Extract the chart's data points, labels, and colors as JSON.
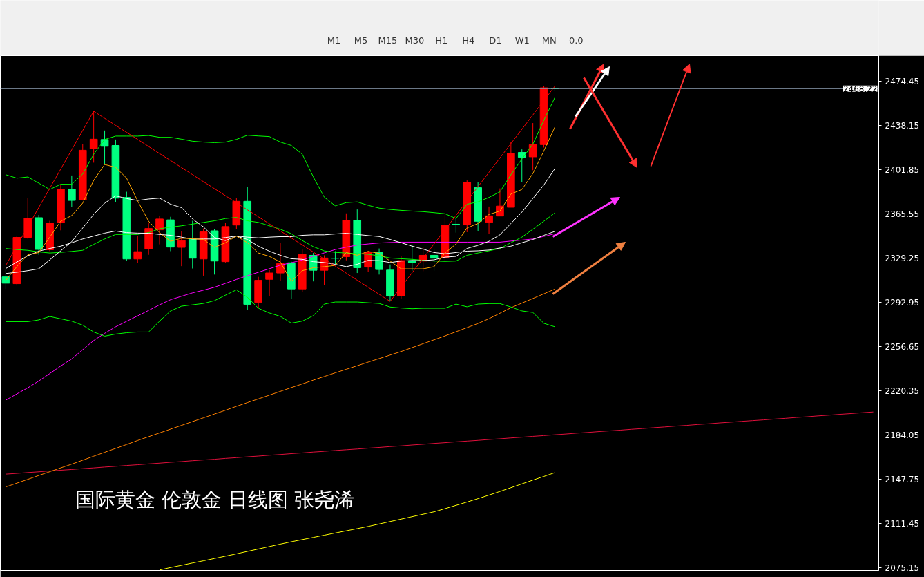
{
  "chart_data": {
    "type": "candlestick",
    "title": "国际黄金 伦敦金 日线图 张尧浠",
    "annotations": [
      "M1",
      "M5",
      "M15",
      "M30",
      "H1",
      "H4",
      "D1",
      "W1",
      "MN",
      "0.0"
    ],
    "tick_labels": "y",
    "ylim": [
      2073.0,
      2495.3
    ],
    "yticks": [
      2474.45,
      2438.15,
      2401.85,
      2365.55,
      2329.25,
      2292.95,
      2256.65,
      2220.35,
      2184.05,
      2147.75,
      2111.45,
      2075.15
    ],
    "ref_lines": [
      {
        "axis": "y",
        "value": 2468.22,
        "label": "2468.22",
        "color": "#8c9cb0"
      }
    ],
    "categories": [
      null,
      null,
      null,
      null,
      null,
      null,
      null,
      null,
      null,
      null,
      null,
      null,
      null,
      null,
      null,
      null,
      null,
      null,
      null,
      null,
      null,
      null,
      null,
      null,
      null,
      null,
      null,
      null,
      null,
      null,
      null,
      null,
      null,
      null,
      null,
      null,
      null,
      null,
      null,
      null,
      null,
      null,
      null,
      null,
      null,
      null,
      null,
      null,
      null,
      null,
      null,
      null,
      null,
      null,
      null,
      null,
      null,
      null,
      null,
      null,
      null,
      null,
      null,
      null,
      null,
      null,
      null,
      null,
      null,
      null,
      null,
      null,
      null,
      null,
      null,
      null,
      null,
      null,
      null,
      null
    ],
    "ohlc": [
      [
        2313.8,
        2320.4,
        2303.9,
        2308.6
      ],
      [
        2308.2,
        2347.3,
        2306.7,
        2346.2
      ],
      [
        2346.2,
        2378.6,
        2345.1,
        2361.9
      ],
      [
        2362.4,
        2364.6,
        2331.9,
        2336.3
      ],
      [
        2336.0,
        2359.8,
        2334.9,
        2358.0
      ],
      [
        2358.1,
        2389.2,
        2352.0,
        2385.9
      ],
      [
        2385.9,
        2397.0,
        2371.0,
        2376.5
      ],
      [
        2377.1,
        2422.7,
        2376.5,
        2417.7
      ],
      [
        2419.0,
        2449.7,
        2407.5,
        2426.8
      ],
      [
        2426.5,
        2433.9,
        2406.0,
        2420.9
      ],
      [
        2421.6,
        2426.5,
        2375.1,
        2378.4
      ],
      [
        2379.0,
        2383.6,
        2326.8,
        2328.5
      ],
      [
        2328.5,
        2347.3,
        2325.0,
        2334.5
      ],
      [
        2336.9,
        2358.5,
        2331.9,
        2353.5
      ],
      [
        2352.4,
        2364.1,
        2340.5,
        2361.3
      ],
      [
        2360.6,
        2363.1,
        2334.9,
        2338.2
      ],
      [
        2338.0,
        2351.6,
        2322.6,
        2343.6
      ],
      [
        2344.9,
        2359.8,
        2320.7,
        2329.1
      ],
      [
        2328.5,
        2353.5,
        2314.8,
        2350.7
      ],
      [
        2351.6,
        2352.9,
        2315.7,
        2326.8
      ],
      [
        2326.3,
        2357.9,
        2325.6,
        2355.1
      ],
      [
        2356.3,
        2378.4,
        2352.9,
        2375.8
      ],
      [
        2375.8,
        2387.4,
        2286.8,
        2291.3
      ],
      [
        2292.8,
        2313.8,
        2288.3,
        2311.0
      ],
      [
        2311.8,
        2319.4,
        2298.0,
        2317.0
      ],
      [
        2317.0,
        2341.7,
        2310.6,
        2324.8
      ],
      [
        2325.4,
        2326.3,
        2295.8,
        2303.9
      ],
      [
        2303.9,
        2336.7,
        2301.4,
        2332.3
      ],
      [
        2331.5,
        2333.4,
        2310.1,
        2319.2
      ],
      [
        2319.2,
        2331.5,
        2306.9,
        2329.3
      ],
      [
        2329.1,
        2334.9,
        2324.0,
        2329.1
      ],
      [
        2330.4,
        2365.9,
        2327.4,
        2360.2
      ],
      [
        2360.2,
        2369.1,
        2317.0,
        2321.3
      ],
      [
        2321.8,
        2335.2,
        2317.6,
        2334.3
      ],
      [
        2334.3,
        2337.1,
        2315.7,
        2319.8
      ],
      [
        2319.4,
        2324.0,
        2293.7,
        2298.0
      ],
      [
        2298.3,
        2331.1,
        2296.1,
        2327.2
      ],
      [
        2327.2,
        2339.9,
        2318.9,
        2325.4
      ],
      [
        2326.8,
        2338.6,
        2318.5,
        2331.5
      ],
      [
        2331.5,
        2337.1,
        2318.9,
        2329.1
      ],
      [
        2329.6,
        2365.0,
        2326.8,
        2356.1
      ],
      [
        2357.0,
        2361.7,
        2350.1,
        2357.0
      ],
      [
        2356.4,
        2392.9,
        2350.5,
        2391.4
      ],
      [
        2387.0,
        2391.4,
        2351.1,
        2359.4
      ],
      [
        2358.5,
        2371.5,
        2349.2,
        2363.9
      ],
      [
        2363.7,
        2386.4,
        2363.7,
        2371.9
      ],
      [
        2370.9,
        2424.6,
        2370.9,
        2415.3
      ],
      [
        2415.9,
        2418.4,
        2391.6,
        2411.9
      ],
      [
        2412.3,
        2440.0,
        2401.3,
        2422.2
      ],
      [
        2422.3,
        2470.2,
        2419.9,
        2468.9
      ],
      [
        2468.22,
        2470.2,
        2466.4,
        2468.22
      ],
      null,
      null,
      null,
      null,
      null,
      null,
      null,
      null,
      null,
      null,
      null,
      null,
      null,
      null,
      null,
      null,
      null,
      null,
      null,
      null,
      null,
      null,
      null,
      null,
      null,
      null,
      null,
      null,
      null
    ],
    "colors": [
      "#00ff80",
      "#ff0000",
      "#ff0000",
      "#00ff80",
      "#ff0000",
      "#ff0000",
      "#00ff80",
      "#ff0000",
      "#ff0000",
      "#00ff80",
      "#00ff80",
      "#00ff80",
      "#ff0000",
      "#ff0000",
      "#ff0000",
      "#00ff80",
      "#ff0000",
      "#00ff80",
      "#ff0000",
      "#00ff80",
      "#ff0000",
      "#ff0000",
      "#00ff80",
      "#ff0000",
      "#ff0000",
      "#ff0000",
      "#00ff80",
      "#ff0000",
      "#00ff80",
      "#ff0000",
      "#00ff80",
      "#ff0000",
      "#00ff80",
      "#ff0000",
      "#00ff80",
      "#00ff80",
      "#ff0000",
      "#00ff80",
      "#ff0000",
      "#00ff80",
      "#ff0000",
      "#00ff80",
      "#ff0000",
      "#00ff80",
      "#ff0000",
      "#ff0000",
      "#ff0000",
      "#00ff80",
      "#ff0000",
      "#ff0000",
      "#00ff80",
      null,
      null,
      null,
      null,
      null,
      null,
      null,
      null,
      null,
      null,
      null,
      null,
      null,
      null,
      null,
      null,
      null,
      null,
      null,
      null,
      null,
      null,
      null,
      null,
      null,
      null,
      null,
      null,
      null
    ],
    "series": [
      {
        "type": "line",
        "color": "#e0103c",
        "values": [
          2152.0,
          2152.6,
          2153.3,
          2153.9,
          2154.6,
          2155.2,
          2155.8,
          2156.5,
          2157.1,
          2157.8,
          2158.4,
          2159.1,
          2159.7,
          2160.4,
          2161.0,
          2161.7,
          2162.3,
          2163.0,
          2163.6,
          2164.2,
          2164.9,
          2165.5,
          2166.2,
          2166.8,
          2167.5,
          2168.1,
          2168.8,
          2169.4,
          2170.1,
          2170.7,
          2171.4,
          2172.0,
          2172.6,
          2173.3,
          2173.9,
          2174.6,
          2175.2,
          2175.9,
          2176.5,
          2177.2,
          2177.8,
          2178.5,
          2179.1,
          2179.7,
          2180.4,
          2181.0,
          2181.7,
          2182.3,
          2183.0,
          2183.6,
          2184.3,
          2184.9,
          2185.6,
          2186.2,
          2186.9,
          2187.5,
          2188.1,
          2188.8,
          2189.4,
          2190.1,
          2190.7,
          2191.4,
          2192.0,
          2192.7,
          2193.3,
          2194.0,
          2194.6,
          2195.3,
          2195.9,
          2196.5,
          2197.2,
          2197.8,
          2198.5,
          2199.1,
          2199.8,
          2200.4,
          2201.1,
          2201.7,
          2202.4,
          2203.0
        ]
      },
      {
        "type": "line",
        "color": "#ffff00",
        "values": [
          null,
          null,
          null,
          null,
          null,
          null,
          null,
          null,
          null,
          null,
          null,
          null,
          null,
          null,
          2073.4,
          2075.4,
          2077.2,
          2079.1,
          2080.9,
          2082.8,
          2084.7,
          2086.6,
          2088.6,
          2090.6,
          2092.6,
          2094.6,
          2096.5,
          2098.3,
          2100.1,
          2101.9,
          2103.7,
          2105.5,
          2107.3,
          2109.1,
          2111.1,
          2113.1,
          2115.1,
          2117.1,
          2119.1,
          2121.1,
          2123.7,
          2126.4,
          2129.1,
          2131.9,
          2134.8,
          2137.8,
          2140.9,
          2144.0,
          2147.1,
          2150.1,
          2153.2,
          null,
          null,
          null,
          null,
          null,
          null,
          null,
          null,
          null,
          null,
          null,
          null,
          null,
          null,
          null,
          null,
          null,
          null,
          null,
          null,
          null,
          null,
          null,
          null,
          null,
          null,
          null,
          null,
          null
        ]
      },
      {
        "type": "line",
        "color": "#ff8000",
        "values": [
          2141.5,
          2144.6,
          2147.7,
          2150.9,
          2154.0,
          2157.1,
          2160.2,
          2163.4,
          2166.7,
          2169.9,
          2173.1,
          2176.3,
          2179.6,
          2182.7,
          2185.8,
          2188.9,
          2192.0,
          2195.1,
          2198.2,
          2201.3,
          2204.4,
          2207.6,
          2210.7,
          2213.7,
          2216.8,
          2219.9,
          2223.0,
          2226.0,
          2229.1,
          2232.1,
          2235.1,
          2238.0,
          2240.9,
          2243.9,
          2246.8,
          2249.7,
          2252.6,
          2255.8,
          2259.0,
          2262.2,
          2265.4,
          2268.8,
          2272.2,
          2275.6,
          2279.5,
          2284.0,
          2288.5,
          2292.3,
          2296.1,
          2299.9,
          2303.8,
          null,
          null,
          null,
          null,
          null,
          null,
          null,
          null,
          null,
          null,
          null,
          null,
          null,
          null,
          null,
          null,
          null,
          null,
          null,
          null,
          null,
          null,
          null,
          null,
          null,
          null,
          null,
          null,
          null
        ]
      },
      {
        "type": "line",
        "color": "#ff00ff",
        "values": [
          2212.7,
          2217.8,
          2222.8,
          2228.4,
          2234.5,
          2240.7,
          2246.5,
          2254.1,
          2261.6,
          2267.5,
          2272.9,
          2277.4,
          2281.8,
          2286.3,
          2290.9,
          2295.1,
          2297.9,
          2300.7,
          2302.9,
          2305.3,
          2308.5,
          2311.7,
          2314.8,
          2317.6,
          2320.5,
          2323.4,
          2325.4,
          2327.7,
          2330.7,
          2333.5,
          2336.2,
          2338.2,
          2339.9,
          2340.8,
          2341.6,
          2342.0,
          2342.3,
          2342.3,
          2342.3,
          2342.3,
          2342.3,
          2342.3,
          2342.3,
          2342.3,
          2342.3,
          2342.3,
          2343.2,
          2344.0,
          2344.9,
          2347.0,
          2349.2,
          null,
          null,
          null,
          null,
          null,
          null,
          null,
          null,
          null,
          null,
          null,
          null,
          null,
          null,
          null,
          null,
          null,
          null,
          null,
          null,
          null,
          null,
          null,
          null,
          null,
          null,
          null,
          null,
          null
        ]
      },
      {
        "type": "line",
        "color": "#00ff00",
        "values": [
          2397.6,
          2394.8,
          2395.8,
          2390.7,
          2385.5,
          2389.8,
          2389.8,
          2398.2,
          2414.4,
          2426.5,
          2429.3,
          2429.3,
          2429.3,
          2429.8,
          2428.3,
          2428.3,
          2426.8,
          2425.1,
          2424.4,
          2423.9,
          2424.4,
          2426.6,
          2430.0,
          2429.4,
          2428.9,
          2424.4,
          2421.6,
          2414.4,
          2395.9,
          2379.2,
          2372.1,
          2374.7,
          2375.3,
          2372.5,
          2370.2,
          2369.1,
          2368.4,
          2367.8,
          2367.3,
          2366.5,
          2365.6,
          2361.7,
          2373.4,
          2375.3,
          2379.0,
          2383.6,
          2397.6,
          2410.6,
          2422.7,
          2442.3,
          2460.9,
          null,
          null,
          null,
          null,
          null,
          null,
          null,
          null,
          null,
          null,
          null,
          null,
          null,
          null,
          null,
          null,
          null,
          null,
          null,
          null,
          null,
          null,
          null,
          null,
          null,
          null,
          null,
          null,
          null
        ]
      },
      {
        "type": "line",
        "color": "#00ff00",
        "values": [
          2337.1,
          2336.2,
          2335.6,
          2334.3,
          2333.4,
          2333.9,
          2334.7,
          2335.6,
          2340.5,
          2344.9,
          2348.6,
          2348.6,
          2348.6,
          2350.1,
          2353.3,
          2354.6,
          2355.7,
          2357.1,
          2358.5,
          2359.8,
          2361.7,
          2362.6,
          2359.8,
          2358.5,
          2355.7,
          2352.9,
          2349.2,
          2343.6,
          2338.6,
          2335.1,
          2333.9,
          2333.4,
          2332.8,
          2332.3,
          2331.1,
          2329.3,
          2328.7,
          2328.2,
          2327.4,
          2326.8,
          2326.5,
          2326.8,
          2331.5,
          2333.4,
          2335.2,
          2337.1,
          2341.8,
          2346.4,
          2352.9,
          2359.5,
          2366.3,
          null,
          null,
          null,
          null,
          null,
          null,
          null,
          null,
          null,
          null,
          null,
          null,
          null,
          null,
          null,
          null,
          null,
          null,
          null,
          null,
          null,
          null,
          null,
          null,
          null,
          null,
          null,
          null,
          null
        ]
      },
      {
        "type": "line",
        "color": "#00ff00",
        "values": [
          2277.1,
          2277.1,
          2277.1,
          2278.5,
          2281.3,
          2279.4,
          2277.5,
          2274.2,
          2268.6,
          2265.2,
          2266.9,
          2268.0,
          2268.6,
          2268.6,
          2277.5,
          2285.9,
          2289.8,
          2290.9,
          2292.0,
          2294.3,
          2298.8,
          2303.2,
          2297.1,
          2288.1,
          2284.2,
          2281.4,
          2275.9,
          2277.5,
          2282.0,
          2291.5,
          2293.2,
          2293.2,
          2293.2,
          2292.6,
          2292.0,
          2289.1,
          2288.3,
          2287.7,
          2288.1,
          2288.1,
          2288.1,
          2291.5,
          2289.3,
          2291.5,
          2291.9,
          2291.9,
          2289.1,
          2285.9,
          2284.6,
          2275.7,
          2272.9,
          null,
          null,
          null,
          null,
          null,
          null,
          null,
          null,
          null,
          null,
          null,
          null,
          null,
          null,
          null,
          null,
          null,
          null,
          null,
          null,
          null,
          null,
          null,
          null,
          null,
          null,
          null,
          null,
          null
        ]
      },
      {
        "type": "line",
        "color": "#ffffff",
        "values": [
          2320.7,
          2326.0,
          2331.1,
          2334.9,
          2337.1,
          2339.0,
          2341.8,
          2344.9,
          2347.3,
          2349.7,
          2351.4,
          2350.1,
          2349.7,
          2349.6,
          2348.6,
          2347.9,
          2346.4,
          2344.8,
          2344.9,
          2344.9,
          2346.1,
          2347.3,
          2346.4,
          2345.8,
          2346.4,
          2346.8,
          2346.8,
          2347.9,
          2348.3,
          2348.3,
          2349.0,
          2349.6,
          2348.6,
          2347.7,
          2346.9,
          2344.5,
          2341.8,
          2339.0,
          2336.6,
          2333.8,
          2332.8,
          2333.8,
          2334.9,
          2335.2,
          2335.8,
          2337.5,
          2339.0,
          2341.8,
          2344.5,
          2347.9,
          2351.1,
          null,
          null,
          null,
          null,
          null,
          null,
          null,
          null,
          null,
          null,
          null,
          null,
          null,
          null,
          null,
          null,
          null,
          null,
          null,
          null,
          null,
          null,
          null,
          null,
          null,
          null,
          null,
          null,
          null
        ]
      },
      {
        "type": "line",
        "color": "#ffffff",
        "values": [
          2316.6,
          2317.6,
          2318.9,
          2320.4,
          2327.8,
          2335.2,
          2342.7,
          2353.9,
          2365.0,
          2374.3,
          2380.3,
          2378.1,
          2376.5,
          2377.7,
          2378.4,
          2373.4,
          2370.6,
          2361.3,
          2354.8,
          2346.1,
          2343.6,
          2347.3,
          2344.5,
          2339.0,
          2334.9,
          2331.5,
          2328.7,
          2328.2,
          2326.3,
          2325.6,
          2324.1,
          2322.2,
          2324.1,
          2327.4,
          2327.1,
          2325.6,
          2326.8,
          2327.2,
          2327.2,
          2327.8,
          2330.0,
          2330.6,
          2337.1,
          2339.7,
          2343.0,
          2348.3,
          2357.6,
          2366.9,
          2378.1,
          2389.2,
          2402.6,
          null,
          null,
          null,
          null,
          null,
          null,
          null,
          null,
          null,
          null,
          null,
          null,
          null,
          null,
          null,
          null,
          null,
          null,
          null,
          null,
          null,
          null,
          null,
          null,
          null,
          null,
          null,
          null,
          null
        ]
      },
      {
        "type": "line",
        "color": "#ffa500",
        "values": [
          2311.0,
          2322.2,
          2331.9,
          2333.8,
          2346.4,
          2359.5,
          2364.1,
          2374.3,
          2393.0,
          2406.0,
          2403.7,
          2394.8,
          2376.2,
          2359.5,
          2350.1,
          2343.0,
          2345.5,
          2345.1,
          2344.5,
          2338.0,
          2341.8,
          2347.3,
          2341.8,
          2333.4,
          2330.6,
          2326.0,
          2310.1,
          2318.9,
          2321.3,
          2322.2,
          2323.2,
          2333.8,
          2331.5,
          2334.7,
          2333.1,
          2326.8,
          2320.4,
          2320.4,
          2320.4,
          2322.2,
          2333.4,
          2340.8,
          2353.9,
          2357.6,
          2365.0,
          2367.8,
          2381.8,
          2385.5,
          2398.6,
          2417.2,
          2436.7,
          null,
          null,
          null,
          null,
          null,
          null,
          null,
          null,
          null,
          null,
          null,
          null,
          null,
          null,
          null,
          null,
          null,
          null,
          null,
          null,
          null,
          null,
          null,
          null,
          null,
          null,
          null,
          null,
          null
        ]
      },
      {
        "type": "line",
        "color": "#ff0000",
        "values": [
          2323.3,
          2339.1,
          2354.9,
          2370.7,
          2386.5,
          2402.3,
          2418.1,
          2433.9,
          2449.7,
          2443.9,
          2438.1,
          2432.4,
          2426.6,
          2420.8,
          2415.0,
          2409.3,
          2403.5,
          2397.7,
          2391.9,
          2386.2,
          2380.4,
          2374.6,
          2368.8,
          2363.1,
          2357.3,
          2351.5,
          2345.7,
          2340.0,
          2334.2,
          2328.4,
          2322.6,
          2316.9,
          2311.1,
          2305.3,
          2299.5,
          2293.7,
          2305.5,
          2317.2,
          2329.0,
          2340.8,
          2352.5,
          2364.3,
          2376.1,
          2387.8,
          2399.6,
          2411.4,
          2423.2,
          2434.9,
          2446.7,
          2458.5,
          2470.2,
          null,
          null,
          null,
          null,
          null,
          null,
          null,
          null,
          null,
          null,
          null,
          null,
          null,
          null,
          null,
          null,
          null,
          null,
          null,
          null,
          null,
          null,
          null,
          null,
          null,
          null,
          null,
          null,
          null
        ]
      }
    ]
  }
}
